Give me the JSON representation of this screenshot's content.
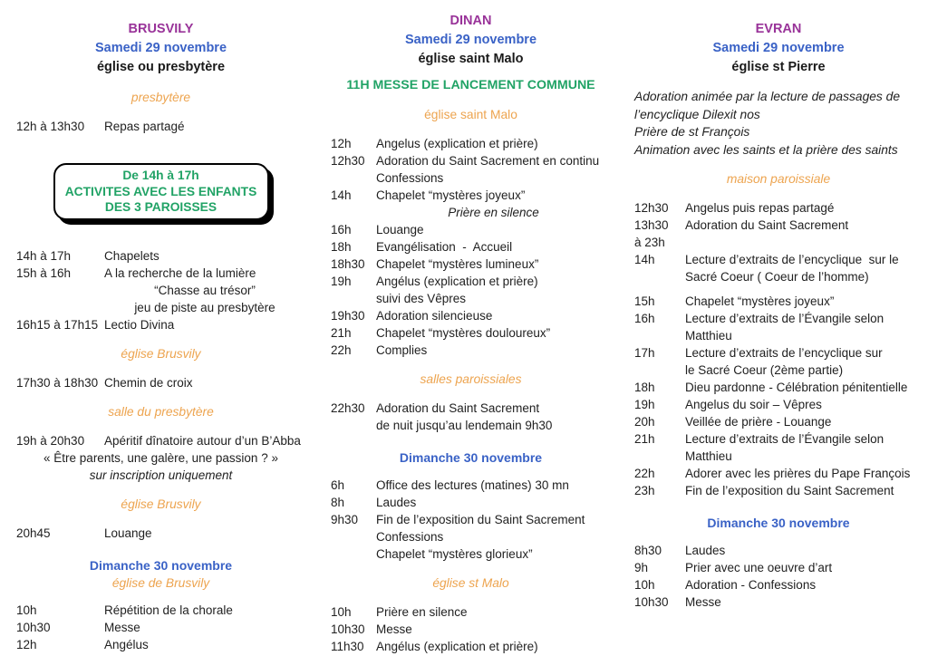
{
  "colors": {
    "purple": "#993399",
    "blue": "#3A62C6",
    "green": "#21A366",
    "orange": "#EDA44F",
    "ink": "#212121"
  },
  "columns": [
    {
      "name": "brusvily",
      "title": "BRUSVILY",
      "date": "Samedi 29 novembre",
      "location": "église ou presbytère",
      "blocks": [
        {
          "type": "venue",
          "text": "presbytère"
        },
        {
          "type": "rows",
          "rows": [
            {
              "time": "12h à 13h30",
              "text": "Repas partagé"
            }
          ]
        },
        {
          "type": "box",
          "lines": [
            "De 14h à 17h",
            "ACTIVITES AVEC LES ENFANTS",
            "DES 3 PAROISSES"
          ]
        },
        {
          "type": "rows",
          "rows": [
            {
              "time": "14h à 17h",
              "text": "Chapelets"
            },
            {
              "time": "15h à 16h",
              "text": "A la recherche de la lumière"
            },
            {
              "time": "",
              "text": "“Chasse au trésor”",
              "center": true
            },
            {
              "time": "",
              "text": "jeu de piste au presbytère",
              "center": true
            },
            {
              "time": "16h15 à 17h15",
              "text": "Lectio Divina"
            }
          ]
        },
        {
          "type": "venue",
          "text": "église Brusvily"
        },
        {
          "type": "rows",
          "rows": [
            {
              "time": "17h30 à 18h30",
              "text": "Chemin de croix"
            }
          ]
        },
        {
          "type": "venue",
          "text": "salle du presbytère"
        },
        {
          "type": "rows",
          "rows": [
            {
              "time": "19h à 20h30",
              "text": "Apéritif dînatoire autour d’un B’Abba"
            },
            {
              "wide": true,
              "text": "« Être parents, une galère, une passion ? »"
            },
            {
              "wide": true,
              "italic": true,
              "text": "sur inscription uniquement"
            }
          ]
        },
        {
          "type": "venue",
          "text": "église Brusvily"
        },
        {
          "type": "rows",
          "rows": [
            {
              "time": "20h45",
              "text": "Louange"
            }
          ]
        },
        {
          "type": "day",
          "text": "Dimanche 30 novembre"
        },
        {
          "type": "venue",
          "tight": true,
          "text": "église de Brusvily"
        },
        {
          "type": "rows",
          "rows": [
            {
              "time": "10h",
              "text": "Répétition de la chorale"
            },
            {
              "time": "10h30",
              "text": "Messe"
            },
            {
              "time": "12h",
              "text": "Angélus"
            }
          ]
        }
      ]
    },
    {
      "name": "dinan",
      "title": "DINAN",
      "date": "Samedi 29 novembre",
      "location": "église saint Malo",
      "blocks": [
        {
          "type": "announce",
          "text": "11H MESSE DE LANCEMENT COMMUNE"
        },
        {
          "type": "venue",
          "upright": true,
          "text": "église saint Malo"
        },
        {
          "type": "rows",
          "rows": [
            {
              "time": "12h",
              "text": "Angelus (explication et prière)"
            },
            {
              "time": "12h30",
              "text": "Adoration du Saint Sacrement en continu"
            },
            {
              "time": "",
              "text": "Confessions"
            },
            {
              "time": "14h",
              "text": "Chapelet “mystères joyeux”"
            },
            {
              "time": "",
              "text": "Prière en silence",
              "center": true,
              "italic": true
            },
            {
              "time": "16h",
              "text": "Louange"
            },
            {
              "time": "18h",
              "text": "Evangélisation  -  Accueil"
            },
            {
              "time": "18h30",
              "text": "Chapelet “mystères lumineux”"
            },
            {
              "time": "19h",
              "text": "Angélus (explication et prière)"
            },
            {
              "time": "",
              "text": "suivi des Vêpres"
            },
            {
              "time": "19h30",
              "text": "Adoration silencieuse"
            },
            {
              "time": "21h",
              "text": "Chapelet “mystères douloureux”"
            },
            {
              "time": "22h",
              "text": "Complies"
            }
          ]
        },
        {
          "type": "venue",
          "text": "salles paroissiales"
        },
        {
          "type": "rows",
          "rows": [
            {
              "time": "22h30",
              "text": "Adoration du Saint Sacrement"
            },
            {
              "time": "",
              "text": "de nuit jusqu’au lendemain 9h30"
            }
          ]
        },
        {
          "type": "day",
          "text": "Dimanche 30 novembre"
        },
        {
          "type": "rows",
          "rows": [
            {
              "time": "6h",
              "text": "Office des lectures (matines) 30 mn"
            },
            {
              "time": "8h",
              "text": "Laudes"
            },
            {
              "time": "9h30",
              "text": "Fin de l’exposition du Saint Sacrement"
            },
            {
              "time": "",
              "text": "Confessions"
            },
            {
              "time": "",
              "text": "Chapelet “mystères glorieux”"
            }
          ]
        },
        {
          "type": "venue",
          "text": "église st Malo"
        },
        {
          "type": "rows",
          "rows": [
            {
              "time": "10h",
              "text": "Prière en silence"
            },
            {
              "time": "10h30",
              "text": "Messe"
            },
            {
              "time": "11h30",
              "text": "Angélus (explication et prière)"
            }
          ]
        }
      ]
    },
    {
      "name": "evran",
      "title": "EVRAN",
      "date": "Samedi 29 novembre",
      "location": "église st Pierre",
      "blocks": [
        {
          "type": "para",
          "lines": [
            "Adoration animée par la lecture de passages de",
            "l’encyclique Dilexit nos",
            "Prière de st François",
            "Animation avec les saints et la prière des saints"
          ]
        },
        {
          "type": "venue",
          "text": "maison paroissiale"
        },
        {
          "type": "rows",
          "rows": [
            {
              "time": "12h30",
              "text": "Angelus puis repas partagé"
            },
            {
              "time": "13h30",
              "text": "Adoration du Saint Sacrement"
            },
            {
              "time": "à 23h",
              "text": ""
            },
            {
              "time": "14h",
              "text": "Lecture d’extraits de l’encyclique  sur le"
            },
            {
              "time": "",
              "text": "Sacré Coeur ( Coeur de l’homme)"
            },
            {
              "time": "15h",
              "text": "Chapelet “mystères joyeux”",
              "gap": true
            },
            {
              "time": "16h",
              "text": "Lecture d’extraits de l’Évangile selon"
            },
            {
              "time": "",
              "text": "Matthieu"
            },
            {
              "time": "17h",
              "text": "Lecture d’extraits de l’encyclique sur"
            },
            {
              "time": "",
              "text": "le Sacré Coeur (2ème partie)"
            },
            {
              "time": "18h",
              "text": "Dieu pardonne - Célébration pénitentielle"
            },
            {
              "time": "19h",
              "text": "Angelus du soir – Vêpres"
            },
            {
              "time": "20h",
              "text": "Veillée de prière - Louange"
            },
            {
              "time": "21h",
              "text": "Lecture d’extraits de l’Évangile selon"
            },
            {
              "time": "",
              "text": "Matthieu"
            },
            {
              "time": "22h",
              "text": "Adorer avec les prières du Pape François"
            },
            {
              "time": "23h",
              "text": "Fin de l’exposition du Saint Sacrement"
            }
          ]
        },
        {
          "type": "day",
          "text": "Dimanche 30 novembre"
        },
        {
          "type": "rows",
          "rows": [
            {
              "time": "8h30",
              "text": "Laudes"
            },
            {
              "time": "9h",
              "text": "Prier avec une oeuvre d’art"
            },
            {
              "time": "10h",
              "text": "Adoration - Confessions"
            },
            {
              "time": "10h30",
              "text": "Messe"
            }
          ]
        }
      ]
    }
  ]
}
